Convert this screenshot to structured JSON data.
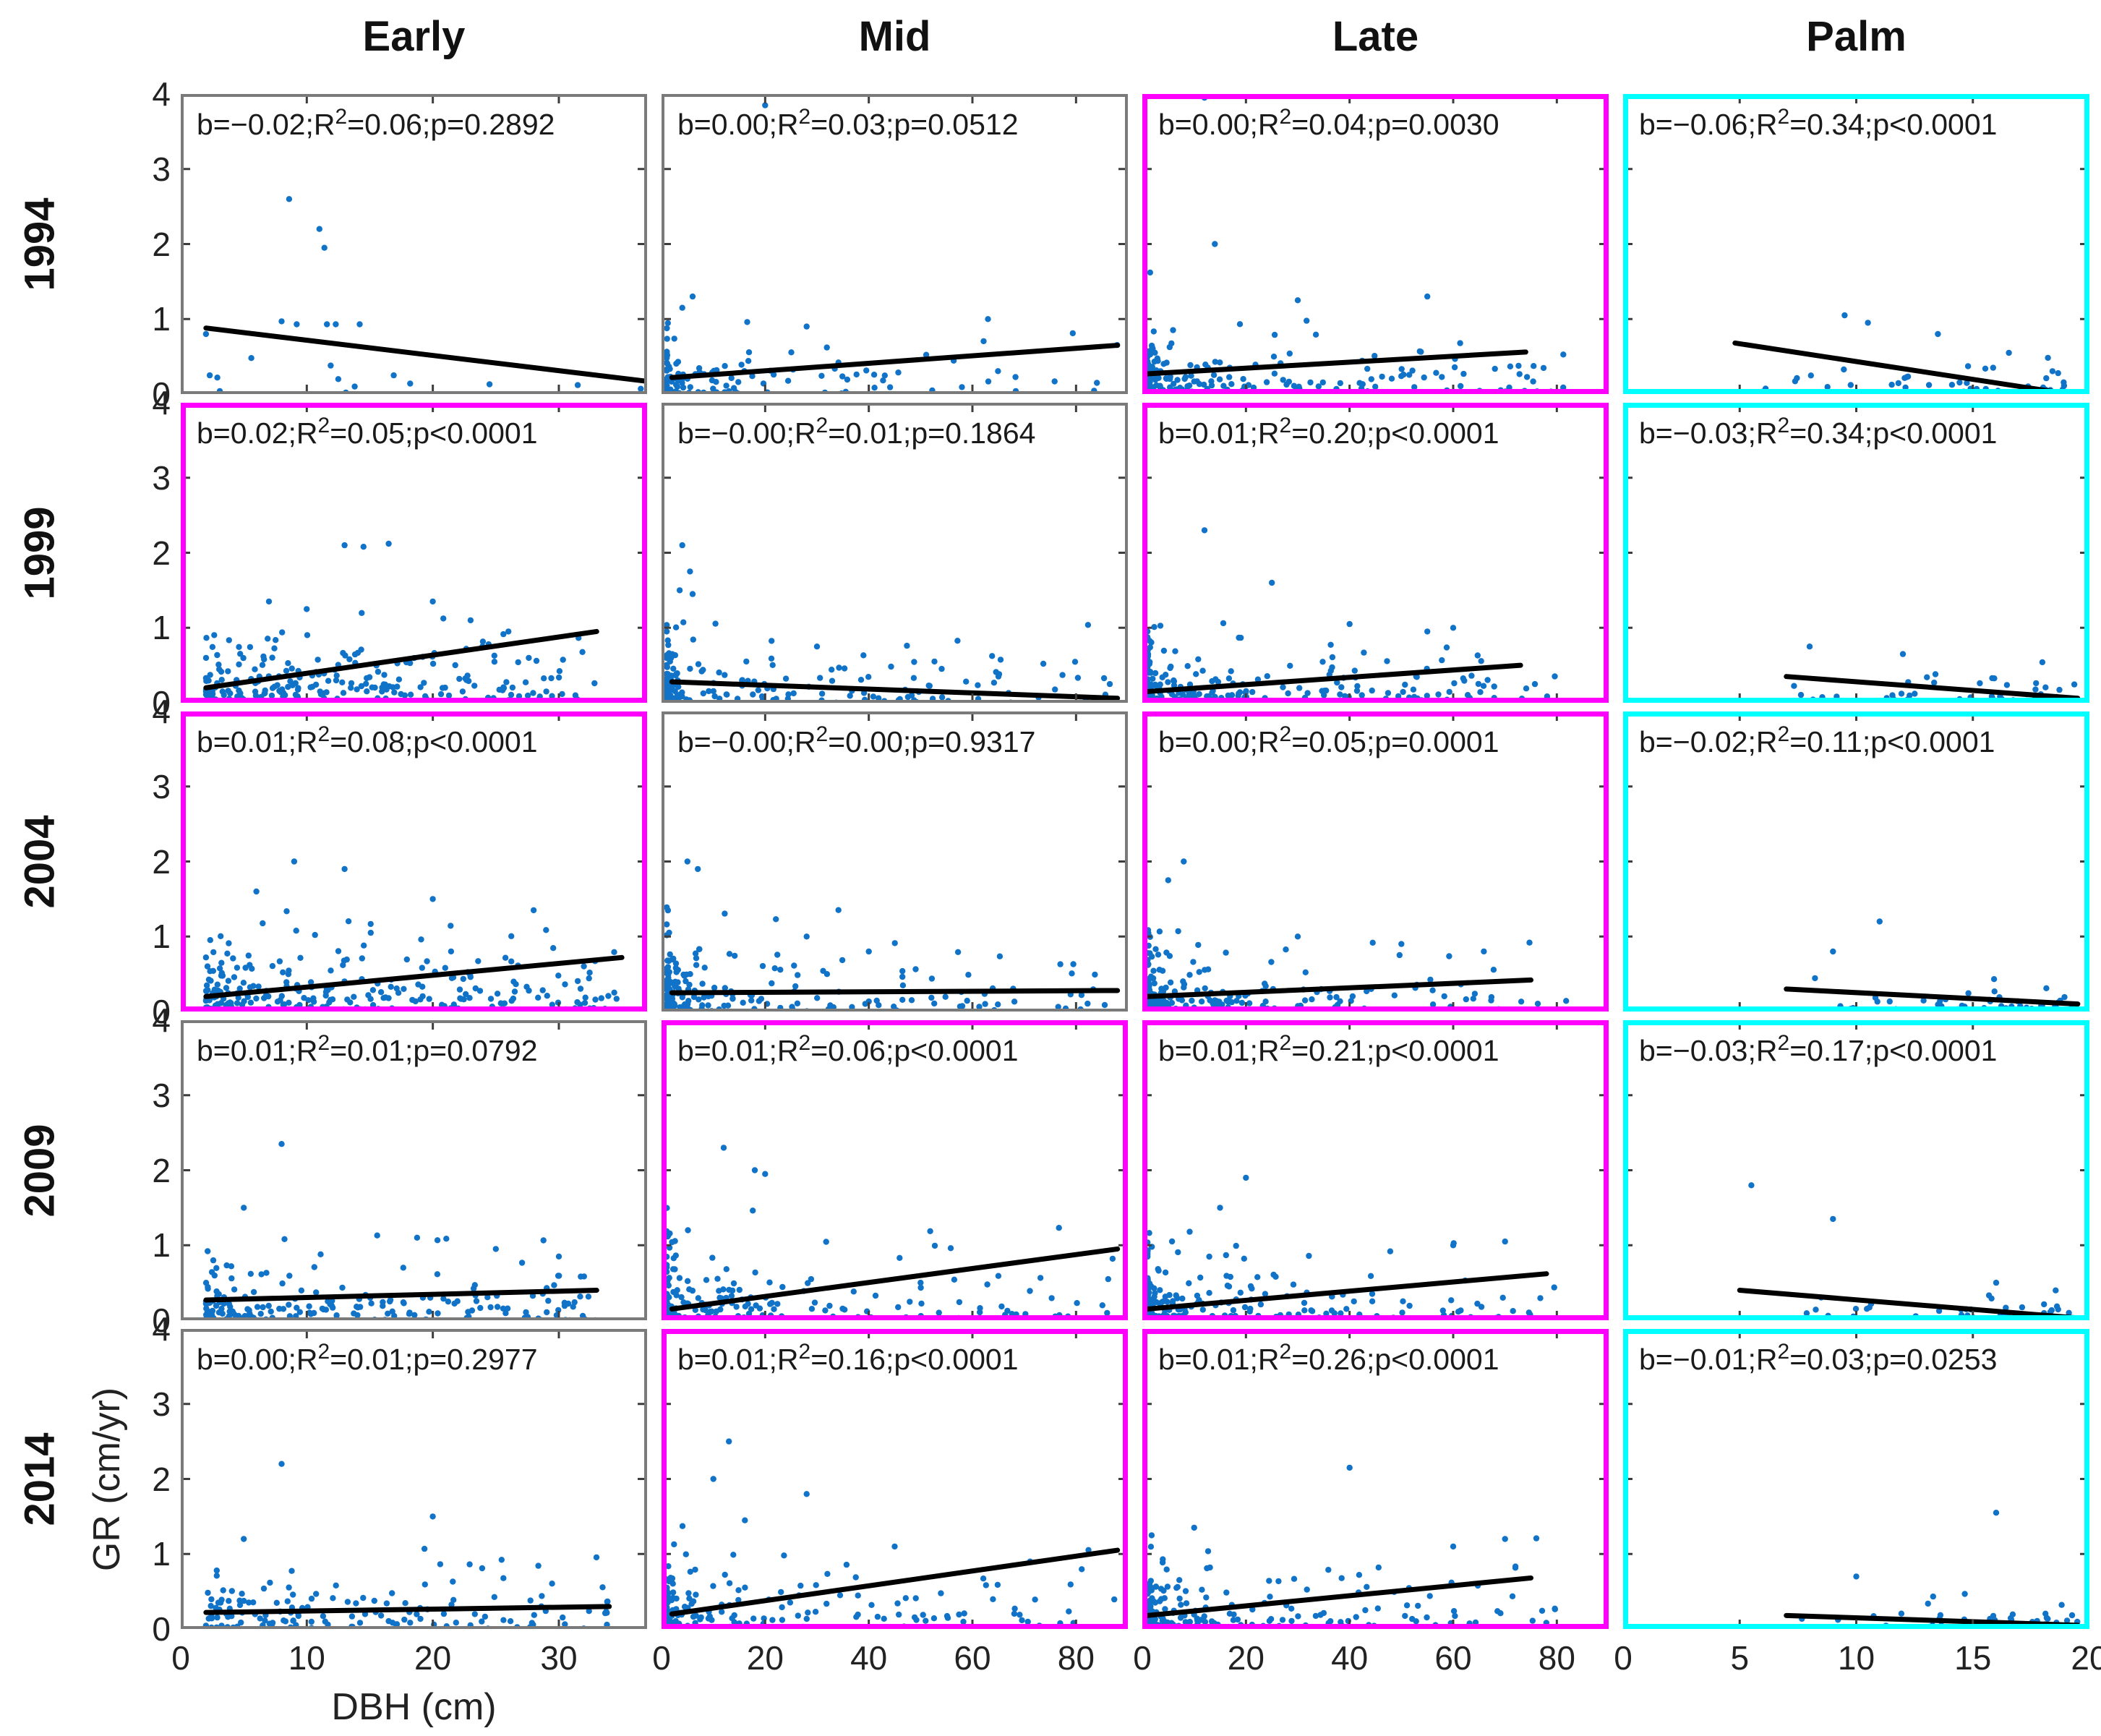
{
  "chart_data": {
    "type": "scatter",
    "title": "",
    "xlabel": "DBH (cm)",
    "ylabel": "GR (cm/yr)",
    "ylim": [
      0,
      4
    ],
    "yticks": [
      0,
      1,
      2,
      3,
      4
    ],
    "grid": {
      "rows": [
        "1994",
        "1999",
        "2004",
        "2009",
        "2014"
      ],
      "columns": [
        "Early",
        "Mid",
        "Late",
        "Palm"
      ]
    },
    "column_axes": {
      "Early": {
        "xlim": [
          0,
          37
        ],
        "xticks": [
          0,
          10,
          20,
          30
        ]
      },
      "Mid": {
        "xlim": [
          0,
          90
        ],
        "xticks": [
          0,
          20,
          40,
          60,
          80
        ]
      },
      "Late": {
        "xlim": [
          0,
          90
        ],
        "xticks": [
          0,
          20,
          40,
          60,
          80
        ]
      },
      "Palm": {
        "xlim": [
          0,
          20
        ],
        "xticks": [
          0,
          5,
          10,
          15,
          20
        ]
      }
    },
    "colors": {
      "point": "#1173c8",
      "regression_line": "#000000",
      "border_gray": "#7a7a7a",
      "border_magenta": "#ff00ff",
      "border_cyan": "#00ffff",
      "tick": "#3d3d3d"
    },
    "panels": [
      {
        "row": "1994",
        "col": "Early",
        "border": "gray",
        "stats": {
          "b": "−0.02",
          "r2": "0.06",
          "p": "=0.2892"
        },
        "regression_line": {
          "x": [
            2,
            37
          ],
          "y": [
            0.88,
            0.17
          ]
        },
        "scatter": {
          "seed": 1,
          "n": 0,
          "points": [
            [
              2,
              0.8
            ],
            [
              2.3,
              0.25
            ],
            [
              2.9,
              0.22
            ],
            [
              3.1,
              0.04
            ],
            [
              5.6,
              0.48
            ],
            [
              8,
              0.97
            ],
            [
              8.6,
              2.6
            ],
            [
              9.2,
              0.93
            ],
            [
              11,
              2.2
            ],
            [
              11.4,
              1.95
            ],
            [
              11.6,
              0.93
            ],
            [
              12.3,
              0.93
            ],
            [
              14.2,
              0.93
            ],
            [
              11.9,
              0.38
            ],
            [
              12.5,
              0.2
            ],
            [
              13.8,
              0.1
            ],
            [
              13.1,
              0.02
            ],
            [
              16.9,
              0.25
            ],
            [
              18.2,
              0.14
            ],
            [
              24.5,
              0.13
            ],
            [
              31.5,
              0.12
            ],
            [
              36.5,
              0.07
            ]
          ]
        }
      },
      {
        "row": "1994",
        "col": "Mid",
        "border": "gray",
        "stats": {
          "b": "0.00",
          "r2": "0.03",
          "p": "=0.0512"
        },
        "regression_line": {
          "x": [
            2,
            88
          ],
          "y": [
            0.22,
            0.65
          ]
        },
        "scatter": {
          "seed": 2,
          "n": 125,
          "x_min": 1,
          "x_max": 88,
          "x_pow": 4,
          "y_scale": 0.22,
          "y_cap": 1.0,
          "outliers": [
            [
              20,
              3.85
            ],
            [
              4,
              1.15
            ],
            [
              6,
              1.3
            ],
            [
              63,
              1.0
            ],
            [
              28,
              0.9
            ]
          ]
        }
      },
      {
        "row": "1994",
        "col": "Late",
        "border": "magenta",
        "stats": {
          "b": "0.00",
          "r2": "0.04",
          "p": "=0.0030"
        },
        "regression_line": {
          "x": [
            1,
            74
          ],
          "y": [
            0.27,
            0.56
          ]
        },
        "scatter": {
          "seed": 3,
          "n": 200,
          "x_min": 1,
          "x_max": 82,
          "x_pow": 3.2,
          "y_scale": 0.28,
          "y_cap": 1.2,
          "outliers": [
            [
              12,
              3.95
            ],
            [
              1.5,
              1.62
            ],
            [
              14,
              2.0
            ],
            [
              30,
              1.25
            ],
            [
              55,
              1.3
            ]
          ]
        }
      },
      {
        "row": "1994",
        "col": "Palm",
        "border": "cyan",
        "stats": {
          "b": "−0.06",
          "r2": "0.34",
          "p": "<0.0001"
        },
        "regression_line": {
          "x": [
            4.8,
            18.5
          ],
          "y": [
            0.68,
            0.03
          ]
        },
        "scatter": {
          "seed": 4,
          "n": 42,
          "x_min": 5,
          "x_max": 19.5,
          "x_pow": 0.5,
          "y_scale": 0.16,
          "y_cap": 0.75,
          "outliers": [
            [
              9.5,
              1.05
            ],
            [
              10.5,
              0.95
            ],
            [
              13.5,
              0.8
            ]
          ]
        }
      },
      {
        "row": "1999",
        "col": "Early",
        "border": "magenta",
        "stats": {
          "b": "0.02",
          "r2": "0.05",
          "p": "<0.0001"
        },
        "regression_line": {
          "x": [
            2,
            33
          ],
          "y": [
            0.2,
            0.95
          ]
        },
        "scatter": {
          "seed": 5,
          "n": 255,
          "x_min": 2,
          "x_max": 33,
          "x_pow": 1.7,
          "y_scale": 0.3,
          "y_cap": 1.3,
          "outliers": [
            [
              13,
              2.1
            ],
            [
              14.5,
              2.08
            ],
            [
              16.5,
              2.12
            ],
            [
              7,
              1.35
            ],
            [
              20,
              1.35
            ],
            [
              23,
              1.1
            ],
            [
              26,
              0.95
            ]
          ]
        }
      },
      {
        "row": "1999",
        "col": "Mid",
        "border": "gray",
        "stats": {
          "b": "−0.00",
          "r2": "0.01",
          "p": "=0.1864"
        },
        "regression_line": {
          "x": [
            2,
            88
          ],
          "y": [
            0.28,
            0.06
          ]
        },
        "scatter": {
          "seed": 6,
          "n": 205,
          "x_min": 1,
          "x_max": 88,
          "x_pow": 4,
          "y_scale": 0.25,
          "y_cap": 1.1,
          "outliers": [
            [
              4,
              2.1
            ],
            [
              5.5,
              1.75
            ],
            [
              3.5,
              1.5
            ],
            [
              6,
              1.45
            ],
            [
              30,
              0.75
            ]
          ]
        }
      },
      {
        "row": "1999",
        "col": "Late",
        "border": "magenta",
        "stats": {
          "b": "0.01",
          "r2": "0.20",
          "p": "<0.0001"
        },
        "regression_line": {
          "x": [
            1,
            73
          ],
          "y": [
            0.15,
            0.5
          ]
        },
        "scatter": {
          "seed": 7,
          "n": 225,
          "x_min": 1,
          "x_max": 82,
          "x_pow": 3.2,
          "y_scale": 0.25,
          "y_cap": 1.1,
          "outliers": [
            [
              12,
              2.3
            ],
            [
              25,
              1.6
            ],
            [
              40,
              1.05
            ],
            [
              55,
              0.95
            ],
            [
              60,
              1.0
            ]
          ]
        }
      },
      {
        "row": "1999",
        "col": "Palm",
        "border": "cyan",
        "stats": {
          "b": "−0.03",
          "r2": "0.34",
          "p": "<0.0001"
        },
        "regression_line": {
          "x": [
            7,
            19.5
          ],
          "y": [
            0.35,
            0.06
          ]
        },
        "scatter": {
          "seed": 8,
          "n": 58,
          "x_min": 6,
          "x_max": 19.5,
          "x_pow": 0.5,
          "y_scale": 0.12,
          "y_cap": 0.6,
          "outliers": [
            [
              8,
              0.75
            ],
            [
              12,
              0.65
            ]
          ]
        }
      },
      {
        "row": "2004",
        "col": "Early",
        "border": "magenta",
        "stats": {
          "b": "0.01",
          "r2": "0.08",
          "p": "<0.0001"
        },
        "regression_line": {
          "x": [
            2,
            35
          ],
          "y": [
            0.2,
            0.72
          ]
        },
        "scatter": {
          "seed": 9,
          "n": 280,
          "x_min": 2,
          "x_max": 35,
          "x_pow": 1.7,
          "y_scale": 0.3,
          "y_cap": 1.4,
          "outliers": [
            [
              9,
              2.0
            ],
            [
              13,
              1.9
            ],
            [
              20,
              1.5
            ],
            [
              28,
              1.35
            ],
            [
              6,
              1.6
            ]
          ]
        }
      },
      {
        "row": "2004",
        "col": "Mid",
        "border": "gray",
        "stats": {
          "b": "−0.00",
          "r2": "0.00",
          "p": "=0.9317"
        },
        "regression_line": {
          "x": [
            2,
            88
          ],
          "y": [
            0.25,
            0.28
          ]
        },
        "scatter": {
          "seed": 10,
          "n": 240,
          "x_min": 1,
          "x_max": 88,
          "x_pow": 4.2,
          "y_scale": 0.3,
          "y_cap": 1.5,
          "outliers": [
            [
              5,
              2.0
            ],
            [
              7,
              1.9
            ],
            [
              28,
              1.0
            ],
            [
              40,
              0.8
            ]
          ]
        }
      },
      {
        "row": "2004",
        "col": "Late",
        "border": "magenta",
        "stats": {
          "b": "0.00",
          "r2": "0.05",
          "p": "=0.0001"
        },
        "regression_line": {
          "x": [
            1,
            75
          ],
          "y": [
            0.2,
            0.42
          ]
        },
        "scatter": {
          "seed": 11,
          "n": 205,
          "x_min": 1,
          "x_max": 82,
          "x_pow": 3.2,
          "y_scale": 0.25,
          "y_cap": 1.1,
          "outliers": [
            [
              8,
              2.0
            ],
            [
              5,
              1.75
            ],
            [
              30,
              1.0
            ],
            [
              50,
              0.9
            ]
          ]
        }
      },
      {
        "row": "2004",
        "col": "Palm",
        "border": "cyan",
        "stats": {
          "b": "−0.02",
          "r2": "0.11",
          "p": "<0.0001"
        },
        "regression_line": {
          "x": [
            7,
            19.5
          ],
          "y": [
            0.3,
            0.1
          ]
        },
        "scatter": {
          "seed": 12,
          "n": 55,
          "x_min": 6,
          "x_max": 19.5,
          "x_pow": 0.5,
          "y_scale": 0.13,
          "y_cap": 0.65,
          "outliers": [
            [
              11,
              1.2
            ],
            [
              9,
              0.8
            ]
          ]
        }
      },
      {
        "row": "2009",
        "col": "Early",
        "border": "gray",
        "stats": {
          "b": "0.01",
          "r2": "0.01",
          "p": "=0.0792"
        },
        "regression_line": {
          "x": [
            2,
            33
          ],
          "y": [
            0.27,
            0.4
          ]
        },
        "scatter": {
          "seed": 13,
          "n": 190,
          "x_min": 2,
          "x_max": 33,
          "x_pow": 1.6,
          "y_scale": 0.28,
          "y_cap": 1.2,
          "outliers": [
            [
              8,
              2.35
            ],
            [
              5,
              1.5
            ],
            [
              25,
              0.95
            ],
            [
              30,
              0.85
            ]
          ]
        }
      },
      {
        "row": "2009",
        "col": "Mid",
        "border": "magenta",
        "stats": {
          "b": "0.01",
          "r2": "0.06",
          "p": "<0.0001"
        },
        "regression_line": {
          "x": [
            2,
            88
          ],
          "y": [
            0.15,
            0.95
          ]
        },
        "scatter": {
          "seed": 14,
          "n": 205,
          "x_min": 1,
          "x_max": 88,
          "x_pow": 3.6,
          "y_scale": 0.3,
          "y_cap": 1.5,
          "outliers": [
            [
              12,
              2.3
            ],
            [
              18,
              2.0
            ],
            [
              20,
              1.95
            ],
            [
              50,
              0.5
            ]
          ]
        }
      },
      {
        "row": "2009",
        "col": "Late",
        "border": "magenta",
        "stats": {
          "b": "0.01",
          "r2": "0.21",
          "p": "<0.0001"
        },
        "regression_line": {
          "x": [
            1,
            78
          ],
          "y": [
            0.15,
            0.62
          ]
        },
        "scatter": {
          "seed": 15,
          "n": 205,
          "x_min": 1,
          "x_max": 80,
          "x_pow": 3.0,
          "y_scale": 0.27,
          "y_cap": 1.2,
          "outliers": [
            [
              20,
              1.9
            ],
            [
              15,
              1.5
            ],
            [
              60,
              1.0
            ],
            [
              70,
              1.05
            ]
          ]
        }
      },
      {
        "row": "2009",
        "col": "Palm",
        "border": "cyan",
        "stats": {
          "b": "−0.03",
          "r2": "0.17",
          "p": "<0.0001"
        },
        "regression_line": {
          "x": [
            5,
            19.5
          ],
          "y": [
            0.4,
            0.03
          ]
        },
        "scatter": {
          "seed": 16,
          "n": 48,
          "x_min": 5,
          "x_max": 19.5,
          "x_pow": 0.55,
          "y_scale": 0.12,
          "y_cap": 0.6,
          "outliers": [
            [
              5.5,
              1.8
            ],
            [
              9,
              1.35
            ],
            [
              16,
              0.5
            ]
          ]
        }
      },
      {
        "row": "2014",
        "col": "Early",
        "border": "gray",
        "stats": {
          "b": "0.00",
          "r2": "0.01",
          "p": "=0.2977"
        },
        "regression_line": {
          "x": [
            2,
            34
          ],
          "y": [
            0.22,
            0.3
          ]
        },
        "scatter": {
          "seed": 17,
          "n": 150,
          "x_min": 2,
          "x_max": 34,
          "x_pow": 1.6,
          "y_scale": 0.26,
          "y_cap": 1.1,
          "outliers": [
            [
              8,
              2.2
            ],
            [
              20,
              1.5
            ],
            [
              5,
              1.2
            ]
          ]
        }
      },
      {
        "row": "2014",
        "col": "Mid",
        "border": "magenta",
        "stats": {
          "b": "0.01",
          "r2": "0.16",
          "p": "<0.0001"
        },
        "regression_line": {
          "x": [
            2,
            88
          ],
          "y": [
            0.2,
            1.05
          ]
        },
        "scatter": {
          "seed": 18,
          "n": 190,
          "x_min": 1,
          "x_max": 88,
          "x_pow": 3.4,
          "y_scale": 0.3,
          "y_cap": 1.6,
          "outliers": [
            [
              13,
              2.5
            ],
            [
              10,
              2.0
            ],
            [
              28,
              1.8
            ],
            [
              45,
              1.1
            ]
          ]
        }
      },
      {
        "row": "2014",
        "col": "Late",
        "border": "magenta",
        "stats": {
          "b": "0.01",
          "r2": "0.26",
          "p": "<0.0001"
        },
        "regression_line": {
          "x": [
            1,
            75
          ],
          "y": [
            0.18,
            0.68
          ]
        },
        "scatter": {
          "seed": 19,
          "n": 205,
          "x_min": 1,
          "x_max": 80,
          "x_pow": 3.0,
          "y_scale": 0.28,
          "y_cap": 1.3,
          "outliers": [
            [
              40,
              2.15
            ],
            [
              10,
              1.35
            ],
            [
              60,
              1.1
            ],
            [
              70,
              1.2
            ]
          ]
        }
      },
      {
        "row": "2014",
        "col": "Palm",
        "border": "cyan",
        "stats": {
          "b": "−0.01",
          "r2": "0.03",
          "p": "=0.0253"
        },
        "regression_line": {
          "x": [
            7,
            19.5
          ],
          "y": [
            0.18,
            0.05
          ]
        },
        "scatter": {
          "seed": 20,
          "n": 55,
          "x_min": 6,
          "x_max": 19.5,
          "x_pow": 0.5,
          "y_scale": 0.12,
          "y_cap": 0.6,
          "outliers": [
            [
              16,
              1.55
            ],
            [
              10,
              0.7
            ]
          ]
        }
      }
    ]
  }
}
